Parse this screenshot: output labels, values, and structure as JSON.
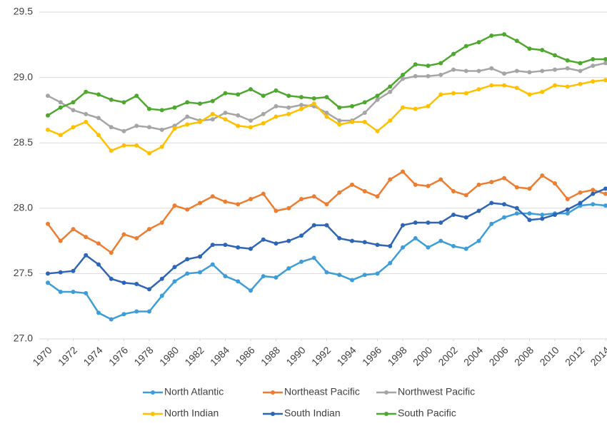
{
  "chart_data": {
    "type": "line",
    "x": [
      1970,
      1971,
      1972,
      1973,
      1974,
      1975,
      1976,
      1977,
      1978,
      1979,
      1980,
      1981,
      1982,
      1983,
      1984,
      1985,
      1986,
      1987,
      1988,
      1989,
      1990,
      1991,
      1992,
      1993,
      1994,
      1995,
      1996,
      1997,
      1998,
      1999,
      2000,
      2001,
      2002,
      2003,
      2004,
      2005,
      2006,
      2007,
      2008,
      2009,
      2010,
      2011,
      2012,
      2013,
      2014
    ],
    "xlim": [
      1970,
      2014
    ],
    "xticks": [
      1970,
      1972,
      1974,
      1976,
      1978,
      1980,
      1982,
      1984,
      1986,
      1988,
      1990,
      1992,
      1994,
      1996,
      1998,
      2000,
      2002,
      2004,
      2006,
      2008,
      2010,
      2012,
      2014
    ],
    "ylim": [
      27,
      29.5
    ],
    "yticks": [
      {
        "value": 27,
        "label": "27.0"
      },
      27.5,
      {
        "value": 28,
        "label": "28.0"
      },
      28.5,
      {
        "value": 29,
        "label": "29.0"
      },
      29.5
    ],
    "grid": true,
    "legend": "bottom",
    "series": [
      {
        "name": "North Atlantic",
        "color": "#3c9dd9",
        "values": [
          27.43,
          27.36,
          27.36,
          27.35,
          27.2,
          27.15,
          27.19,
          27.21,
          27.21,
          27.33,
          27.44,
          27.5,
          27.51,
          27.57,
          27.48,
          27.44,
          27.37,
          27.48,
          27.47,
          27.54,
          27.59,
          27.62,
          27.51,
          27.49,
          27.45,
          27.49,
          27.5,
          27.58,
          27.7,
          27.77,
          27.7,
          27.75,
          27.71,
          27.69,
          27.75,
          27.88,
          27.93,
          27.96,
          27.96,
          27.95,
          27.96,
          27.96,
          28.02,
          28.03,
          28.02
        ]
      },
      {
        "name": "Northeast Pacific",
        "color": "#ed7d31",
        "values": [
          27.88,
          27.75,
          27.84,
          27.78,
          27.73,
          27.66,
          27.8,
          27.77,
          27.84,
          27.89,
          28.02,
          27.99,
          28.04,
          28.09,
          28.05,
          28.03,
          28.07,
          28.11,
          27.98,
          28.0,
          28.07,
          28.09,
          28.03,
          28.12,
          28.18,
          28.13,
          28.09,
          28.22,
          28.28,
          28.18,
          28.17,
          28.22,
          28.13,
          28.1,
          28.18,
          28.2,
          28.23,
          28.16,
          28.15,
          28.25,
          28.19,
          28.07,
          28.12,
          28.14,
          28.11
        ]
      },
      {
        "name": "Northwest Pacific",
        "color": "#a5a5a5",
        "values": [
          28.86,
          28.81,
          28.75,
          28.72,
          28.69,
          28.62,
          28.59,
          28.63,
          28.62,
          28.6,
          28.63,
          28.7,
          28.67,
          28.68,
          28.73,
          28.71,
          28.67,
          28.72,
          28.78,
          28.77,
          28.79,
          28.78,
          28.73,
          28.67,
          28.67,
          28.73,
          28.83,
          28.89,
          28.99,
          29.01,
          29.01,
          29.02,
          29.06,
          29.05,
          29.05,
          29.07,
          29.03,
          29.05,
          29.04,
          29.05,
          29.06,
          29.07,
          29.05,
          29.09,
          29.11
        ]
      },
      {
        "name": "North Indian",
        "color": "#ffc000",
        "values": [
          28.6,
          28.56,
          28.62,
          28.66,
          28.56,
          28.44,
          28.48,
          28.48,
          28.42,
          28.47,
          28.61,
          28.64,
          28.66,
          28.72,
          28.68,
          28.63,
          28.62,
          28.65,
          28.7,
          28.72,
          28.76,
          28.8,
          28.7,
          28.64,
          28.66,
          28.66,
          28.59,
          28.67,
          28.77,
          28.76,
          28.78,
          28.87,
          28.88,
          28.88,
          28.91,
          28.94,
          28.94,
          28.92,
          28.87,
          28.89,
          28.94,
          28.93,
          28.95,
          28.97,
          28.98
        ]
      },
      {
        "name": "South Indian",
        "color": "#2e65b6",
        "values": [
          27.5,
          27.51,
          27.52,
          27.64,
          27.57,
          27.46,
          27.43,
          27.42,
          27.38,
          27.46,
          27.55,
          27.61,
          27.63,
          27.72,
          27.72,
          27.7,
          27.69,
          27.76,
          27.73,
          27.75,
          27.79,
          27.87,
          27.87,
          27.77,
          27.75,
          27.74,
          27.72,
          27.71,
          27.87,
          27.89,
          27.89,
          27.89,
          27.95,
          27.93,
          27.98,
          28.04,
          28.03,
          28.0,
          27.91,
          27.92,
          27.95,
          27.99,
          28.04,
          28.11,
          28.15
        ]
      },
      {
        "name": "South Pacific",
        "color": "#4ea72e",
        "values": [
          28.71,
          28.77,
          28.81,
          28.89,
          28.87,
          28.83,
          28.81,
          28.86,
          28.76,
          28.75,
          28.77,
          28.81,
          28.8,
          28.82,
          28.88,
          28.87,
          28.91,
          28.86,
          28.9,
          28.86,
          28.85,
          28.84,
          28.85,
          28.77,
          28.78,
          28.81,
          28.86,
          28.93,
          29.02,
          29.1,
          29.09,
          29.11,
          29.18,
          29.24,
          29.27,
          29.32,
          29.33,
          29.28,
          29.22,
          29.21,
          29.17,
          29.13,
          29.11,
          29.14,
          29.14
        ]
      }
    ]
  }
}
